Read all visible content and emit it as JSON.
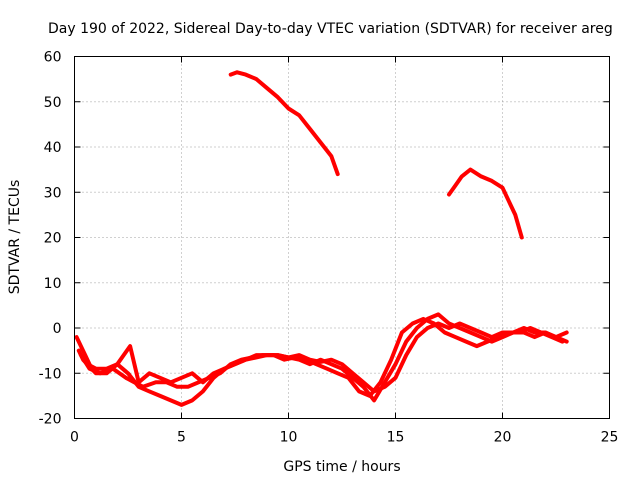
{
  "chart_data": {
    "type": "line",
    "title": "Day 190 of 2022, Sidereal Day-to-day VTEC variation (SDTVAR) for receiver areg",
    "xlabel": "GPS time / hours",
    "ylabel": "SDTVAR / TECUs",
    "xlim": [
      0,
      25
    ],
    "ylim": [
      -20,
      60
    ],
    "xticks": [
      "0",
      "5",
      "10",
      "15",
      "20",
      "25"
    ],
    "yticks": [
      "-20",
      "-10",
      "0",
      "10",
      "20",
      "30",
      "40",
      "50",
      "60"
    ],
    "grid": true,
    "legend": "none",
    "color": "#ff0000",
    "series": [
      {
        "name": "arc-1",
        "x": [
          0.1,
          0.3,
          0.5,
          0.8,
          1.0,
          1.5,
          2.0,
          2.3,
          2.6,
          3.0,
          3.5,
          4.0,
          4.5,
          5.0,
          5.5,
          6.0,
          6.5,
          7.0,
          7.5,
          8.0,
          8.5,
          9.0,
          9.5,
          10.0,
          10.5,
          11.0,
          11.5,
          12.0,
          12.5,
          13.0,
          13.5,
          14.0,
          14.5,
          15.0,
          15.5,
          16.0,
          16.5,
          17.0,
          17.5,
          18.0,
          18.5,
          19.0,
          19.5,
          20.0,
          20.5,
          21.0,
          21.5,
          22.0,
          22.5,
          23.0
        ],
        "y": [
          -2,
          -4,
          -6,
          -9,
          -10,
          -10,
          -8,
          -6,
          -4,
          -12,
          -10,
          -11,
          -12,
          -11,
          -10,
          -12,
          -10,
          -9,
          -8,
          -7,
          -6,
          -6,
          -6,
          -6.5,
          -7,
          -8,
          -7,
          -8,
          -9,
          -11,
          -13,
          -16,
          -12,
          -8,
          -3,
          0,
          2,
          3,
          1,
          0,
          -1,
          -2,
          -3,
          -2,
          -1,
          -1,
          -2,
          -1,
          -2,
          -3
        ]
      },
      {
        "name": "arc-2",
        "x": [
          0.2,
          0.4,
          0.6,
          1.0,
          1.5,
          2.0,
          2.5,
          3.0,
          3.5,
          4.0,
          4.5,
          5.0,
          5.5,
          6.0,
          6.5,
          7.0,
          7.5,
          8.0,
          8.5,
          9.0,
          9.5,
          10.0,
          10.5,
          11.0,
          11.5,
          12.0,
          12.5,
          13.0,
          13.5,
          14.0,
          14.5,
          15.0,
          15.5,
          16.0,
          16.5,
          17.0,
          17.5,
          18.0,
          18.5,
          19.0,
          19.5,
          20.0,
          20.5,
          21.0,
          21.5,
          22.0,
          22.5,
          23.0
        ],
        "y": [
          -5,
          -7,
          -8,
          -9,
          -9,
          -8,
          -10,
          -13,
          -14,
          -15,
          -16,
          -17,
          -16,
          -14,
          -11,
          -9,
          -8,
          -7,
          -6.5,
          -6,
          -6,
          -6.5,
          -6,
          -7,
          -7.5,
          -7,
          -8,
          -10,
          -12,
          -14,
          -13,
          -11,
          -6,
          -2,
          0,
          1,
          0,
          1,
          0,
          -1,
          -2,
          -1,
          -1,
          0,
          -1,
          -1,
          -2,
          -1
        ]
      },
      {
        "name": "arc-3",
        "x": [
          0.3,
          0.7,
          1.2,
          1.8,
          2.4,
          2.8,
          3.2,
          3.8,
          4.3,
          4.8,
          5.3,
          5.8,
          6.3,
          6.8,
          7.3,
          7.8,
          8.3,
          8.8,
          9.3,
          9.8,
          10.3,
          10.8,
          11.3,
          11.8,
          12.3,
          12.8,
          13.3,
          13.8,
          14.3,
          14.8,
          15.3,
          15.8,
          16.3,
          16.8,
          17.3,
          17.8,
          18.3,
          18.8,
          19.3,
          19.8,
          20.3,
          20.8,
          21.3,
          21.8,
          22.3,
          22.8
        ],
        "y": [
          -6,
          -9,
          -10,
          -9,
          -11,
          -12,
          -13,
          -12,
          -12,
          -13,
          -13,
          -12,
          -11,
          -10,
          -8,
          -7,
          -6.5,
          -6,
          -6,
          -7,
          -6.5,
          -7,
          -8,
          -9,
          -10,
          -11,
          -14,
          -15,
          -12,
          -7,
          -1,
          1,
          2,
          1,
          -1,
          -2,
          -3,
          -4,
          -3,
          -2,
          -1,
          -1,
          0,
          -1,
          -2,
          -3
        ]
      },
      {
        "name": "arc-4",
        "x": [
          7.3,
          7.6,
          8.0,
          8.5,
          9.0,
          9.5,
          10.0,
          10.5,
          11.0,
          11.5,
          12.0,
          12.3
        ],
        "y": [
          56,
          56.5,
          56,
          55,
          53,
          51,
          48.5,
          47,
          44,
          41,
          38,
          34
        ]
      },
      {
        "name": "arc-5",
        "x": [
          17.5,
          17.8,
          18.1,
          18.5,
          19.0,
          19.5,
          20.0,
          20.3,
          20.6,
          20.9
        ],
        "y": [
          29.5,
          31.5,
          33.5,
          35,
          33.5,
          32.5,
          31,
          28,
          25,
          20
        ]
      }
    ]
  }
}
